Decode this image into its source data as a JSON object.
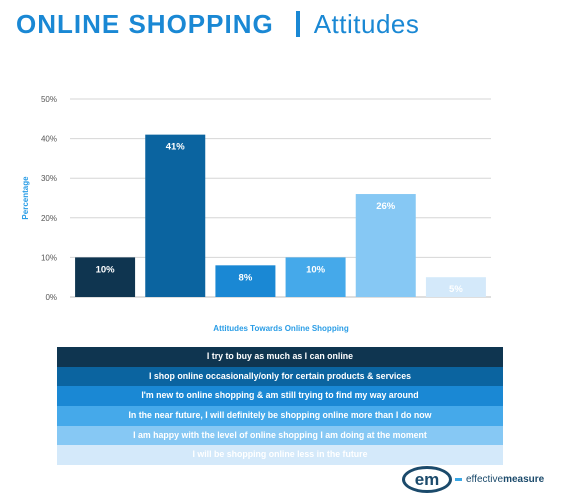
{
  "header": {
    "title": "ONLINE SHOPPING",
    "subtitle": "Attitudes"
  },
  "chart_data": {
    "type": "bar",
    "categories": [
      "I try to buy as much as I can online",
      "I shop online occasionally/only for certain products & services",
      "I'm new to online shopping & am still trying to find my way around",
      "In the near future, I will definitely be shopping online more than I do now",
      "I am happy with the level of online shopping I am doing at the moment",
      "I will be shopping online less in the future"
    ],
    "values": [
      10,
      41,
      8,
      10,
      26,
      5
    ],
    "value_labels": [
      "10%",
      "41%",
      "8%",
      "10%",
      "26%",
      "5%"
    ],
    "colors": [
      "#0f3550",
      "#0b64a0",
      "#1a88d4",
      "#45a9ea",
      "#86c8f4",
      "#d4e9fa"
    ],
    "label_colors": [
      "#ffffff",
      "#ffffff",
      "#ffffff",
      "#ffffff",
      "#ffffff",
      "#ffffff"
    ],
    "xlabel": "Attitudes Towards Online Shopping",
    "ylabel": "Percentage",
    "ylim": [
      0,
      50
    ],
    "yticks": [
      "0%",
      "10%",
      "20%",
      "30%",
      "40%",
      "50%"
    ],
    "grid": true,
    "legend_position": "bottom"
  },
  "logo": {
    "mark": "em",
    "text_part1": "effective",
    "text_part2": "measure"
  }
}
